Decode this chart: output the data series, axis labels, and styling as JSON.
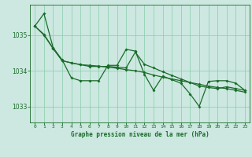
{
  "title": "Graphe pression niveau de la mer (hPa)",
  "background_color": "#cce8e0",
  "plot_bg_color": "#cce8e0",
  "grid_color": "#88ccaa",
  "line_color": "#1a6b2a",
  "xlim": [
    -0.5,
    23.5
  ],
  "ylim": [
    1032.55,
    1035.85
  ],
  "yticks": [
    1033,
    1034,
    1035
  ],
  "xticks": [
    0,
    1,
    2,
    3,
    4,
    5,
    6,
    7,
    8,
    9,
    10,
    11,
    12,
    13,
    14,
    15,
    16,
    17,
    18,
    19,
    20,
    21,
    22,
    23
  ],
  "series1_x": [
    0,
    1,
    2,
    3,
    4,
    5,
    6,
    7,
    8,
    9,
    10,
    11,
    12,
    13,
    14,
    15,
    16,
    17,
    18,
    19,
    20,
    21,
    22,
    23
  ],
  "series1_y": [
    1035.25,
    1035.6,
    1034.65,
    1034.3,
    1033.8,
    1033.72,
    1033.72,
    1033.72,
    1034.15,
    1034.15,
    1034.6,
    1034.55,
    1033.9,
    1033.45,
    1033.85,
    1033.75,
    1033.65,
    1033.35,
    1033.0,
    1033.7,
    1033.72,
    1033.72,
    1033.65,
    1033.45
  ],
  "series2_x": [
    0,
    1,
    2,
    3,
    4,
    5,
    6,
    7,
    8,
    9,
    10,
    11,
    12,
    13,
    14,
    15,
    16,
    17,
    18,
    19,
    20,
    21,
    22,
    23
  ],
  "series2_y": [
    1035.25,
    1035.0,
    1034.62,
    1034.28,
    1034.22,
    1034.17,
    1034.15,
    1034.13,
    1034.1,
    1034.07,
    1034.03,
    1034.0,
    1033.95,
    1033.88,
    1033.82,
    1033.77,
    1033.72,
    1033.67,
    1033.62,
    1033.57,
    1033.53,
    1033.5,
    1033.45,
    1033.4
  ],
  "series3_x": [
    0,
    1,
    2,
    3,
    4,
    5,
    6,
    7,
    8,
    9,
    10,
    11,
    12,
    13,
    14,
    15,
    16,
    17,
    18,
    19,
    20,
    21,
    22,
    23
  ],
  "series3_y": [
    1035.25,
    1035.02,
    1034.63,
    1034.28,
    1034.22,
    1034.17,
    1034.12,
    1034.12,
    1034.12,
    1034.1,
    1034.08,
    1034.52,
    1034.18,
    1034.08,
    1033.97,
    1033.87,
    1033.77,
    1033.67,
    1033.57,
    1033.53,
    1033.5,
    1033.55,
    1033.5,
    1033.45
  ]
}
